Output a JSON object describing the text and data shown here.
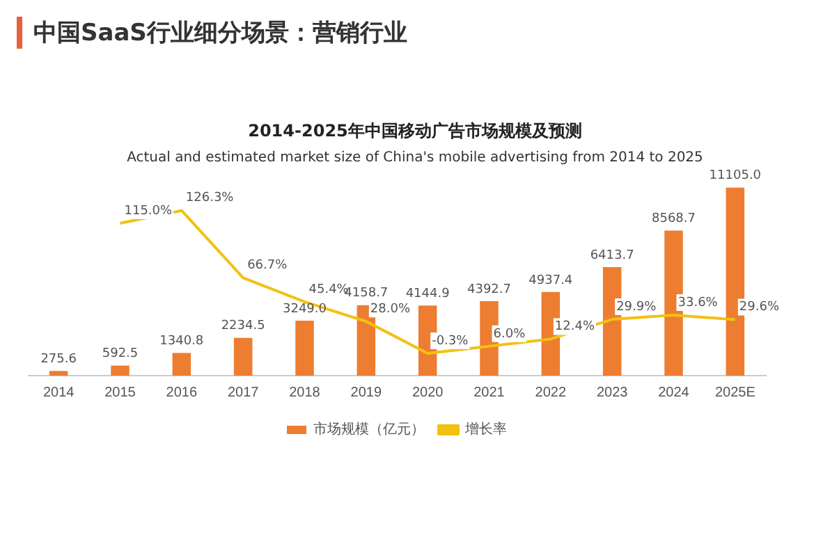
{
  "chart_data": {
    "type": "bar",
    "title": "2014-2025年中国移动广告市场规模及预测",
    "subtitle": "Actual and estimated market size of China's mobile advertising from 2014 to 2025",
    "annotations": [
      "中国SaaS行业细分场景：营销行业"
    ],
    "categories": [
      "2014",
      "2015",
      "2016",
      "2017",
      "2018",
      "2019",
      "2020",
      "2021",
      "2022",
      "2023",
      "2024",
      "2025E"
    ],
    "series": [
      {
        "name": "市场规模（亿元）",
        "color": "#ed7d31",
        "values": [
          275.6,
          592.5,
          1340.8,
          2234.5,
          3249.0,
          4158.7,
          4144.9,
          4392.7,
          4937.4,
          6413.7,
          8568.7,
          11105.0
        ],
        "value_labels": [
          "275.6",
          "592.5",
          "1340.8",
          "2234.5",
          "3249.0",
          "4158.7",
          "4144.9",
          "4392.7",
          "4937.4",
          "6413.7",
          "8568.7",
          "11105.0"
        ]
      },
      {
        "name": "增长率",
        "type": "line",
        "axis": "y2",
        "color": "#f2c111",
        "values": [
          null,
          115.0,
          126.3,
          66.7,
          45.4,
          28.0,
          -0.3,
          6.0,
          12.4,
          29.9,
          33.6,
          29.6
        ],
        "value_labels": [
          null,
          "115.0%",
          "126.3%",
          "66.7%",
          "45.4%",
          "28.0%",
          "-0.3%",
          "6.0%",
          "12.4%",
          "29.9%",
          "33.6%",
          "29.6%"
        ]
      }
    ],
    "tick_labels": "x",
    "grid": false,
    "legend": "bottom",
    "marker": "none",
    "line_style": "solid"
  }
}
